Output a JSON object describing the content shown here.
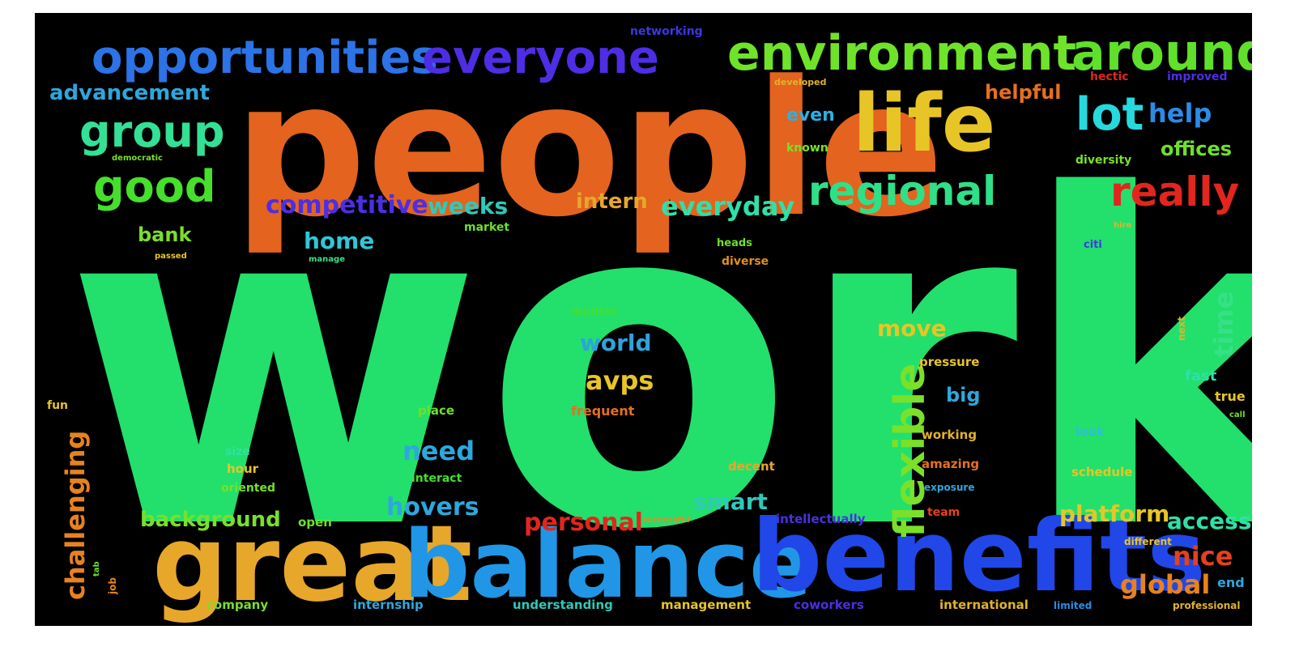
{
  "wordcloud": {
    "background": "#000000",
    "words": [
      {
        "text": "work",
        "color": "#22e06b"
      },
      {
        "text": "people",
        "color": "#e3631f"
      },
      {
        "text": "great",
        "color": "#e7a72a"
      },
      {
        "text": "balance",
        "color": "#2196e6"
      },
      {
        "text": "benefits",
        "color": "#2147e8"
      },
      {
        "text": "life",
        "color": "#e8c527"
      },
      {
        "text": "opportunities",
        "color": "#2b73e6"
      },
      {
        "text": "everyone",
        "color": "#4e2de5"
      },
      {
        "text": "environment",
        "color": "#6ee32a"
      },
      {
        "text": "around",
        "color": "#5fe02a"
      },
      {
        "text": "group",
        "color": "#33e095"
      },
      {
        "text": "good",
        "color": "#45df2c"
      },
      {
        "text": "regional",
        "color": "#2fe088"
      },
      {
        "text": "really",
        "color": "#e2261d"
      },
      {
        "text": "lot",
        "color": "#26d9de"
      },
      {
        "text": "help",
        "color": "#2a8ce6"
      },
      {
        "text": "offices",
        "color": "#6ee02c"
      },
      {
        "text": "advancement",
        "color": "#2ea7dd"
      },
      {
        "text": "networking",
        "color": "#3a38e5"
      },
      {
        "text": "developed",
        "color": "#e2b22a"
      },
      {
        "text": "hectic",
        "color": "#e2261d"
      },
      {
        "text": "improved",
        "color": "#4c2ee5"
      },
      {
        "text": "helpful",
        "color": "#e5701f"
      },
      {
        "text": "even",
        "color": "#2eb0e0"
      },
      {
        "text": "known",
        "color": "#78e02a"
      },
      {
        "text": "diversity",
        "color": "#7ae02a"
      },
      {
        "text": "democratic",
        "color": "#78e02a"
      },
      {
        "text": "competitive",
        "color": "#4c2ee5"
      },
      {
        "text": "weeks",
        "color": "#2fc9b8"
      },
      {
        "text": "intern",
        "color": "#e7a72a"
      },
      {
        "text": "everyday",
        "color": "#2fe0a8"
      },
      {
        "text": "market",
        "color": "#6ee02a"
      },
      {
        "text": "bank",
        "color": "#78e02a"
      },
      {
        "text": "passed",
        "color": "#e8c527"
      },
      {
        "text": "home",
        "color": "#2ec7d8"
      },
      {
        "text": "manage",
        "color": "#36e086"
      },
      {
        "text": "heads",
        "color": "#6ee02a"
      },
      {
        "text": "diverse",
        "color": "#e2901f"
      },
      {
        "text": "citi",
        "color": "#3e38e5"
      },
      {
        "text": "time",
        "color": "#37e088"
      },
      {
        "text": "move",
        "color": "#e8c527"
      },
      {
        "text": "mentor",
        "color": "#45df2c"
      },
      {
        "text": "world",
        "color": "#2ea3dd"
      },
      {
        "text": "avps",
        "color": "#e8c527"
      },
      {
        "text": "flexible",
        "color": "#7ae02a"
      },
      {
        "text": "pressure",
        "color": "#e8c527"
      },
      {
        "text": "big",
        "color": "#2ea7dd"
      },
      {
        "text": "next",
        "color": "#e2b22a"
      },
      {
        "text": "fast",
        "color": "#2fe0a8"
      },
      {
        "text": "true",
        "color": "#e8c527"
      },
      {
        "text": "call",
        "color": "#6ee02a"
      },
      {
        "text": "fun",
        "color": "#e8c527"
      },
      {
        "text": "place",
        "color": "#6ee02a"
      },
      {
        "text": "frequent",
        "color": "#e5701f"
      },
      {
        "text": "working",
        "color": "#e2b22a"
      },
      {
        "text": "look",
        "color": "#2ebfd8"
      },
      {
        "text": "need",
        "color": "#2ea7dd"
      },
      {
        "text": "challenging",
        "color": "#e7821f"
      },
      {
        "text": "size",
        "color": "#2fe0a8"
      },
      {
        "text": "hour",
        "color": "#e8c527"
      },
      {
        "text": "interact",
        "color": "#45df2c"
      },
      {
        "text": "oriented",
        "color": "#78e02a"
      },
      {
        "text": "decent",
        "color": "#e7a72a"
      },
      {
        "text": "amazing",
        "color": "#e5701f"
      },
      {
        "text": "exposure",
        "color": "#2ea7dd"
      },
      {
        "text": "schedule",
        "color": "#e8c527"
      },
      {
        "text": "smart",
        "color": "#2fc9b8"
      },
      {
        "text": "hovers",
        "color": "#2ea7dd"
      },
      {
        "text": "background",
        "color": "#78e02a"
      },
      {
        "text": "open",
        "color": "#6ee02a"
      },
      {
        "text": "personal",
        "color": "#e2261d"
      },
      {
        "text": "successful",
        "color": "#e2901f"
      },
      {
        "text": "intellectually",
        "color": "#4c2ee5"
      },
      {
        "text": "team",
        "color": "#e5401f"
      },
      {
        "text": "platform",
        "color": "#e8c527"
      },
      {
        "text": "access",
        "color": "#2fe0a8"
      },
      {
        "text": "different",
        "color": "#e8c527"
      },
      {
        "text": "nice",
        "color": "#e5401f"
      },
      {
        "text": "global",
        "color": "#e7821f"
      },
      {
        "text": "end",
        "color": "#2ea7dd"
      },
      {
        "text": "job",
        "color": "#e7821f"
      },
      {
        "text": "tab",
        "color": "#6ee02a"
      },
      {
        "text": "company",
        "color": "#78e02a"
      },
      {
        "text": "internship",
        "color": "#2ea7dd"
      },
      {
        "text": "understanding",
        "color": "#2fc9b8"
      },
      {
        "text": "management",
        "color": "#e8c527"
      },
      {
        "text": "coworkers",
        "color": "#4c2ee5"
      },
      {
        "text": "international",
        "color": "#e2b22a"
      },
      {
        "text": "limited",
        "color": "#2a8ce6"
      },
      {
        "text": "professional",
        "color": "#e2b22a"
      },
      {
        "text": "hire",
        "color": "#e2b22a"
      }
    ]
  }
}
